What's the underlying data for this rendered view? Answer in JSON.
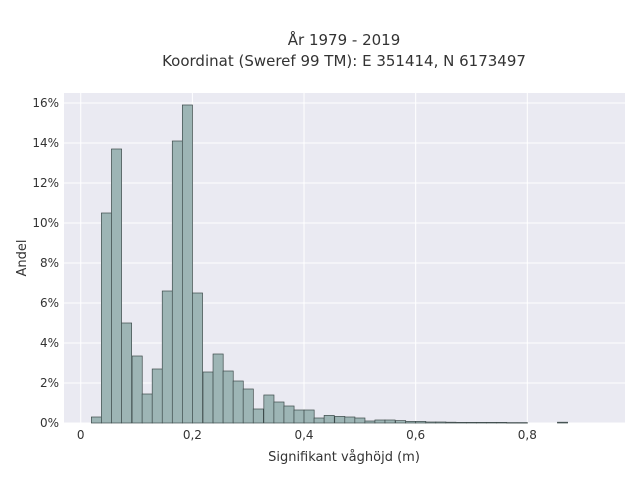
{
  "chart_data": {
    "type": "bar",
    "title_line1": "År 1979 - 2019",
    "title_line2": "Koordinat (Sweref 99 TM): E 351414, N 6173497",
    "xlabel": "Signifikant våghöjd (m)",
    "ylabel": "Andel",
    "xlim": [
      -0.03,
      0.975
    ],
    "ylim": [
      0,
      16.5
    ],
    "x_ticks": [
      0,
      0.2,
      0.4,
      0.6,
      0.8
    ],
    "x_tick_labels": [
      "0",
      "0,2",
      "0,4",
      "0,6",
      "0,8"
    ],
    "y_ticks": [
      0,
      2,
      4,
      6,
      8,
      10,
      12,
      14,
      16
    ],
    "y_tick_labels": [
      "0%",
      "2%",
      "4%",
      "6%",
      "8%",
      "10%",
      "12%",
      "14%",
      "16%"
    ],
    "grid": true,
    "bin_width": 0.01816,
    "bin_starts": [
      0.019,
      0.037,
      0.055,
      0.073,
      0.092,
      0.11,
      0.128,
      0.146,
      0.164,
      0.182,
      0.2,
      0.219,
      0.237,
      0.255,
      0.273,
      0.291,
      0.309,
      0.328,
      0.346,
      0.364,
      0.382,
      0.4,
      0.418,
      0.436,
      0.455,
      0.473,
      0.491,
      0.509,
      0.527,
      0.545,
      0.564,
      0.582,
      0.6,
      0.618,
      0.636,
      0.654,
      0.673,
      0.691,
      0.709,
      0.727,
      0.745,
      0.763,
      0.782,
      0.8,
      0.818,
      0.836,
      0.854
    ],
    "values": [
      0.3,
      10.5,
      13.7,
      5.0,
      3.35,
      1.45,
      2.7,
      6.6,
      14.1,
      15.9,
      6.5,
      2.55,
      3.45,
      2.6,
      2.1,
      1.7,
      0.7,
      1.4,
      1.05,
      0.85,
      0.65,
      0.65,
      0.25,
      0.38,
      0.33,
      0.3,
      0.25,
      0.1,
      0.15,
      0.15,
      0.12,
      0.08,
      0.08,
      0.05,
      0.05,
      0.04,
      0.03,
      0.03,
      0.03,
      0.03,
      0.03,
      0.02,
      0.02,
      0.0,
      0.0,
      0.0,
      0.04
    ],
    "colors": {
      "bar_fill": "#9db5b5",
      "bar_stroke": "#3d4a4a",
      "plot_bg": "#eaeaf2",
      "grid": "#ffffff",
      "text": "#333333"
    }
  }
}
